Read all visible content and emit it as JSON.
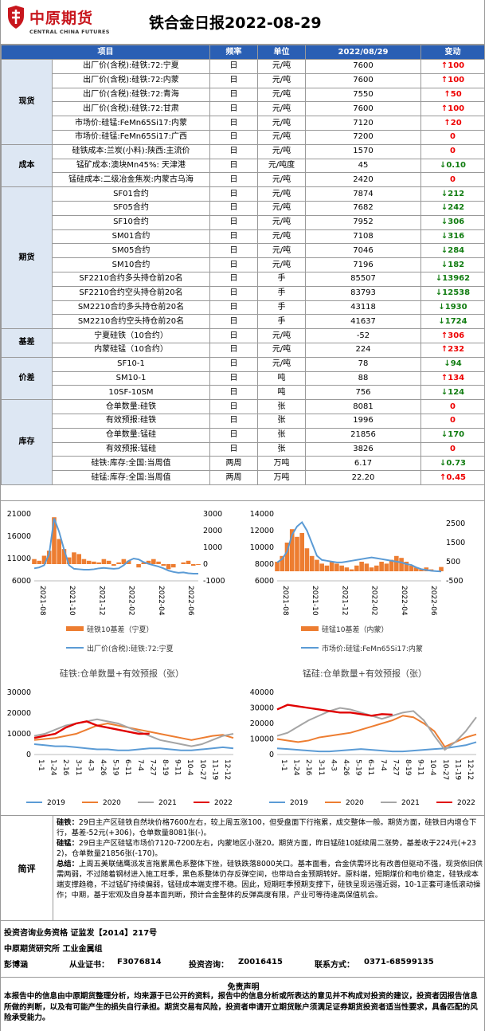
{
  "brand": {
    "name": "中原期货",
    "english": "CENTRAL CHINA FUTURES",
    "color": "#c8161d"
  },
  "title": "铁合金日报2022-08-29",
  "table": {
    "headers": [
      "项目",
      "频率",
      "单位",
      "2022/08/29",
      "变动"
    ],
    "groups": [
      {
        "name": "现货",
        "rows": [
          {
            "item": "出厂价(含税):硅铁:72:宁夏",
            "freq": "日",
            "unit": "元/吨",
            "value": "7600",
            "dir": "up",
            "change": "100"
          },
          {
            "item": "出厂价(含税):硅铁:72:内蒙",
            "freq": "日",
            "unit": "元/吨",
            "value": "7600",
            "dir": "up",
            "change": "100"
          },
          {
            "item": "出厂价(含税):硅铁:72:青海",
            "freq": "日",
            "unit": "元/吨",
            "value": "7550",
            "dir": "up",
            "change": "50"
          },
          {
            "item": "出厂价(含税):硅铁:72:甘肃",
            "freq": "日",
            "unit": "元/吨",
            "value": "7600",
            "dir": "up",
            "change": "100"
          },
          {
            "item": "市场价:硅锰:FeMn65Si17:内蒙",
            "freq": "日",
            "unit": "元/吨",
            "value": "7120",
            "dir": "up",
            "change": "20"
          },
          {
            "item": "市场价:硅锰:FeMn65Si17:广西",
            "freq": "日",
            "unit": "元/吨",
            "value": "7200",
            "dir": "flat",
            "change": "0"
          }
        ]
      },
      {
        "name": "成本",
        "rows": [
          {
            "item": "硅铁成本:兰炭(小料):陕西:主流价",
            "freq": "日",
            "unit": "元/吨",
            "value": "1570",
            "dir": "flat",
            "change": "0"
          },
          {
            "item": "锰矿成本:澳块Mn45%: 天津港",
            "freq": "日",
            "unit": "元/吨度",
            "value": "45",
            "dir": "down",
            "change": "0.10"
          },
          {
            "item": "锰硅成本:二级冶金焦炭:内蒙古乌海",
            "freq": "日",
            "unit": "元/吨",
            "value": "2420",
            "dir": "flat",
            "change": "0"
          }
        ]
      },
      {
        "name": "期货",
        "rows": [
          {
            "item": "SF01合约",
            "freq": "日",
            "unit": "元/吨",
            "value": "7874",
            "dir": "down",
            "change": "212"
          },
          {
            "item": "SF05合约",
            "freq": "日",
            "unit": "元/吨",
            "value": "7682",
            "dir": "down",
            "change": "242"
          },
          {
            "item": "SF10合约",
            "freq": "日",
            "unit": "元/吨",
            "value": "7952",
            "dir": "down",
            "change": "306"
          },
          {
            "item": "SM01合约",
            "freq": "日",
            "unit": "元/吨",
            "value": "7108",
            "dir": "down",
            "change": "316"
          },
          {
            "item": "SM05合约",
            "freq": "日",
            "unit": "元/吨",
            "value": "7046",
            "dir": "down",
            "change": "284"
          },
          {
            "item": "SM10合约",
            "freq": "日",
            "unit": "元/吨",
            "value": "7196",
            "dir": "down",
            "change": "182"
          },
          {
            "item": "SF2210合约多头持仓前20名",
            "freq": "日",
            "unit": "手",
            "value": "85507",
            "dir": "down",
            "change": "13962"
          },
          {
            "item": "SF2210合约空头持仓前20名",
            "freq": "日",
            "unit": "手",
            "value": "83793",
            "dir": "down",
            "change": "12538"
          },
          {
            "item": "SM2210合约多头持仓前20名",
            "freq": "日",
            "unit": "手",
            "value": "43118",
            "dir": "down",
            "change": "1930"
          },
          {
            "item": "SM2210合约空头持仓前20名",
            "freq": "日",
            "unit": "手",
            "value": "41637",
            "dir": "down",
            "change": "1724"
          }
        ]
      },
      {
        "name": "基差",
        "rows": [
          {
            "item": "宁夏硅铁（10合约）",
            "freq": "日",
            "unit": "元/吨",
            "value": "-52",
            "dir": "up",
            "change": "306"
          },
          {
            "item": "内蒙硅锰（10合约）",
            "freq": "日",
            "unit": "元/吨",
            "value": "224",
            "dir": "up",
            "change": "232"
          }
        ]
      },
      {
        "name": "价差",
        "rows": [
          {
            "item": "SF10-1",
            "freq": "日",
            "unit": "元/吨",
            "value": "78",
            "dir": "down",
            "change": "94"
          },
          {
            "item": "SM10-1",
            "freq": "日",
            "unit": "吨",
            "value": "88",
            "dir": "up",
            "change": "134"
          },
          {
            "item": "10SF-10SM",
            "freq": "日",
            "unit": "吨",
            "value": "756",
            "dir": "down",
            "change": "124"
          }
        ]
      },
      {
        "name": "库存",
        "rows": [
          {
            "item": "仓单数量:硅铁",
            "freq": "日",
            "unit": "张",
            "value": "8081",
            "dir": "flat",
            "change": "0"
          },
          {
            "item": "有效预报:硅铁",
            "freq": "日",
            "unit": "张",
            "value": "1996",
            "dir": "flat",
            "change": "0"
          },
          {
            "item": "仓单数量:锰硅",
            "freq": "日",
            "unit": "张",
            "value": "21856",
            "dir": "down",
            "change": "170"
          },
          {
            "item": "有效预报:锰硅",
            "freq": "日",
            "unit": "张",
            "value": "3826",
            "dir": "flat",
            "change": "0"
          },
          {
            "item": "硅铁:库存:全国:当周值",
            "freq": "两周",
            "unit": "万吨",
            "value": "6.17",
            "dir": "down",
            "change": "0.73"
          },
          {
            "item": "硅锰:库存:全国:当周值",
            "freq": "两周",
            "unit": "万吨",
            "value": "22.20",
            "dir": "up",
            "change": "0.45"
          }
        ]
      }
    ]
  },
  "chart_data": [
    {
      "type": "line",
      "left_axis": {
        "min": 6000,
        "max": 21000,
        "ticks": [
          "21000",
          "16000",
          "11000",
          "6000"
        ]
      },
      "right_axis": {
        "min": -1000,
        "max": 3000,
        "ticks": [
          "3000",
          "2000",
          "1000",
          "0",
          "-1000"
        ]
      },
      "x_ticks": [
        "2021-08",
        "2021-10",
        "2021-12",
        "2022-02",
        "2022-04",
        "2022-06"
      ],
      "series": [
        {
          "name": "硅铁10基差（宁夏）",
          "color": "#ed7d31",
          "axis": "right",
          "kind": "area",
          "values": [
            300,
            200,
            500,
            800,
            2800,
            1500,
            900,
            400,
            700,
            600,
            300,
            200,
            150,
            100,
            300,
            200,
            -100,
            100,
            300,
            200,
            0,
            -200,
            100,
            200,
            300,
            150,
            -100,
            -300,
            -200,
            0,
            100,
            200,
            -100,
            -50
          ]
        },
        {
          "name": "出厂价(含税):硅铁:72:宁夏",
          "color": "#5b9bd5",
          "axis": "left",
          "kind": "line",
          "values": [
            8800,
            9000,
            9500,
            12000,
            20000,
            17000,
            13000,
            9500,
            8700,
            8600,
            8500,
            8500,
            8600,
            8800,
            8900,
            8800,
            8700,
            8800,
            9500,
            10500,
            11000,
            10800,
            10200,
            9800,
            9500,
            9200,
            8800,
            8300,
            8000,
            7800,
            7900,
            7700,
            7600,
            7600
          ]
        }
      ]
    },
    {
      "type": "line",
      "left_axis": {
        "min": 6000,
        "max": 14000,
        "ticks": [
          "14000",
          "12000",
          "10000",
          "8000",
          "6000"
        ]
      },
      "right_axis": {
        "min": -500,
        "max": 3000,
        "ticks": [
          "2500",
          "1500",
          "500",
          "-500"
        ]
      },
      "x_ticks": [
        "2021-08",
        "2021-10",
        "2021-12",
        "2022-02",
        "2022-04",
        "2022-06"
      ],
      "series": [
        {
          "name": "硅锰10基差（内蒙）",
          "color": "#ed7d31",
          "axis": "right",
          "kind": "area",
          "values": [
            500,
            800,
            1500,
            2200,
            1800,
            2000,
            1200,
            800,
            600,
            400,
            300,
            500,
            400,
            300,
            200,
            100,
            300,
            500,
            400,
            200,
            300,
            500,
            400,
            600,
            800,
            700,
            500,
            300,
            200,
            100,
            200,
            100,
            0,
            224
          ]
        },
        {
          "name": "市场价:硅锰:FeMn65Si17:内蒙",
          "color": "#5b9bd5",
          "axis": "left",
          "kind": "line",
          "values": [
            8200,
            8600,
            9500,
            11500,
            12500,
            13000,
            12000,
            10500,
            9000,
            8500,
            8400,
            8300,
            8200,
            8200,
            8300,
            8400,
            8500,
            8600,
            8700,
            8800,
            8700,
            8600,
            8500,
            8400,
            8300,
            8200,
            8000,
            7900,
            7600,
            7400,
            7300,
            7200,
            7150,
            7120
          ]
        }
      ]
    },
    {
      "type": "line",
      "title": "硅铁:仓单数量+有效预报（张）",
      "y_ticks": [
        "30000",
        "20000",
        "10000",
        "0"
      ],
      "ylim": [
        0,
        30000
      ],
      "x_ticks": [
        "1-1",
        "1-24",
        "2-16",
        "3-11",
        "4-3",
        "4-26",
        "5-19",
        "6-11",
        "7-4",
        "7-27",
        "8-19",
        "9-11",
        "10-4",
        "10-27",
        "11-19",
        "12-12"
      ],
      "series": [
        {
          "name": "2019",
          "color": "#5b9bd5",
          "values": [
            5000,
            4500,
            4000,
            4000,
            3500,
            3000,
            2500,
            2500,
            2000,
            2000,
            2500,
            3000,
            3000,
            2500,
            2000,
            2000,
            2500,
            3000,
            3500,
            3000
          ]
        },
        {
          "name": "2020",
          "color": "#ed7d31",
          "values": [
            7000,
            7500,
            8000,
            9000,
            10000,
            12000,
            14000,
            15000,
            14000,
            13000,
            12000,
            11000,
            10000,
            9000,
            8000,
            7000,
            8000,
            9000,
            9500,
            8000
          ]
        },
        {
          "name": "2021",
          "color": "#a5a5a5",
          "values": [
            9000,
            10000,
            12000,
            14000,
            15000,
            16000,
            17000,
            16000,
            15000,
            13000,
            11000,
            9000,
            7000,
            6000,
            5000,
            4000,
            5000,
            7000,
            9000,
            10000
          ]
        },
        {
          "name": "2022",
          "color": "#e00000",
          "values": [
            8000,
            9000,
            10000,
            13000,
            15000,
            16000,
            14000,
            13000,
            12000,
            11000,
            10000,
            10077
          ]
        }
      ]
    },
    {
      "type": "line",
      "title": "锰硅:仓单数量+有效预报（张）",
      "y_ticks": [
        "40000",
        "30000",
        "20000",
        "10000",
        "0"
      ],
      "ylim": [
        0,
        40000
      ],
      "x_ticks": [
        "1-1",
        "1-24",
        "2-16",
        "3-11",
        "4-3",
        "4-26",
        "5-19",
        "6-11",
        "7-4",
        "7-27",
        "8-19",
        "9-11",
        "10-4",
        "10-27",
        "11-19",
        "12-12"
      ],
      "series": [
        {
          "name": "2019",
          "color": "#5b9bd5",
          "values": [
            4000,
            3500,
            3000,
            2500,
            2000,
            2000,
            2500,
            3000,
            3500,
            3000,
            2500,
            2000,
            2000,
            2500,
            3000,
            3500,
            4000,
            5000,
            6000,
            8000
          ]
        },
        {
          "name": "2020",
          "color": "#ed7d31",
          "values": [
            10000,
            9000,
            8000,
            9000,
            11000,
            12000,
            13000,
            14000,
            16000,
            18000,
            20000,
            22000,
            25000,
            24000,
            20000,
            15000,
            5000,
            8000,
            11000,
            13000
          ]
        },
        {
          "name": "2021",
          "color": "#a5a5a5",
          "values": [
            12000,
            14000,
            18000,
            22000,
            25000,
            28000,
            30000,
            29000,
            27000,
            25000,
            23000,
            25000,
            27000,
            28000,
            22000,
            12000,
            3000,
            8000,
            15000,
            24000
          ]
        },
        {
          "name": "2022",
          "color": "#e00000",
          "values": [
            29000,
            32000,
            31000,
            30000,
            29000,
            28000,
            27000,
            27000,
            26000,
            25000,
            26000,
            25682
          ]
        }
      ]
    }
  ],
  "comment": {
    "label": "简评",
    "paragraphs": [
      {
        "head": "硅铁：",
        "text": "29日主产区硅铁自然块价格7600左右，较上周五涨100，但受盘面下行拖累，成交整体一般。期货方面，硅铁日内增仓下行，基差-52元(+306)，仓单数量8081张(-)。"
      },
      {
        "head": "硅锰：",
        "text": "29日主产区硅锰市场价7120-7200左右，内蒙地区小涨20。期货方面，昨日锰硅10延续周二涨势，基差收于224元(+232)，仓单数量21856张(-170)。"
      },
      {
        "head": "总结：",
        "text": "上周五美联储鹰派发言拖累黑色系整体下挫，硅铁跌落8000关口。基本面看，合金供需环比有改善但驱动不强，现货依旧供需两弱，不过随着钢材进入施工旺季，黑色系整体仍存反弹空间，也带动合金预期转好。原料端，短期煤价和电价稳定，硅铁成本端支撑趋稳，不过锰矿持续偏弱，锰硅成本端支撑不稳。因此，短期旺季预期支撑下，硅铁呈现远强近弱，10-1正套可逢低滚动操作；中期，基于宏观及自身基本面判断，预计合金整体的反弹高度有限，产业可等待逢高保值机会。"
      }
    ]
  },
  "footer": {
    "qualification": "投资咨询业务资格   证监发【2014】217号",
    "org": "中原期货研究所   工业金属组",
    "analyst": "彭博涵",
    "cert_label": "从业证书：",
    "cert": "F3076814",
    "advisor_label": "投资咨询：",
    "advisor": "Z0016415",
    "phone_label": "联系方式：",
    "phone": "0371-68599135",
    "disclaimer_title": "免责声明",
    "disclaimer": "本报告中的信息由中原期货整理分析，均来源于已公开的资料，报告中的信息分析或所表达的意见并不构成对投资的建议，投资者因报告信息所做的判断，以及有可能产生的损失自行承担。期货交易有风险，投资者申请开立期货账户须满足证券期货投资者适当性要求，具备匹配的风险承受能力。"
  },
  "colors": {
    "header_blue": "#2a5fb4",
    "group_bg": "#dde7f3",
    "up": "#e00000",
    "down": "#107c10"
  }
}
